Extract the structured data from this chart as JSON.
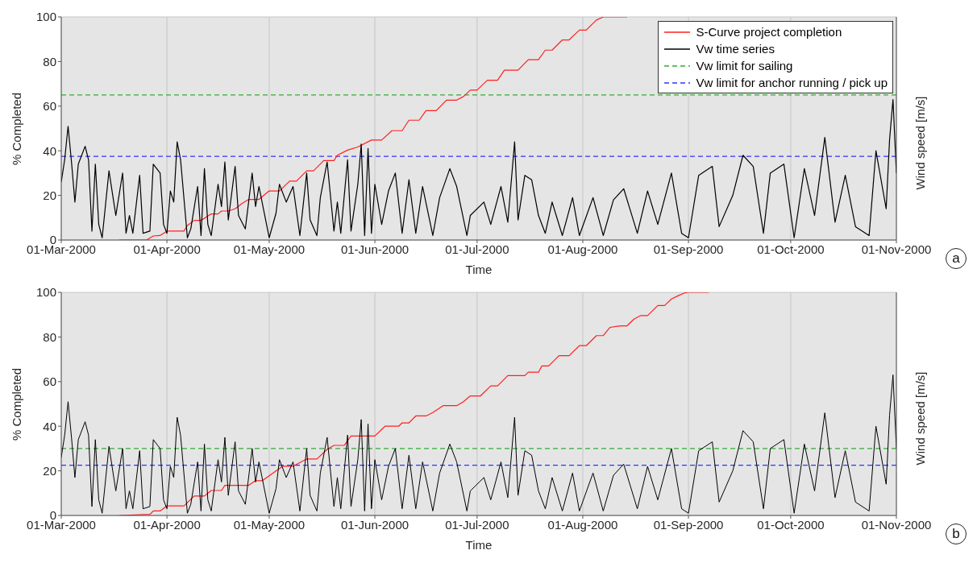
{
  "chart_data": [
    {
      "type": "line",
      "xlabel": "Time",
      "ylabel": "% Completed",
      "y2label": "Wind speed [m/s]",
      "xlim": [
        "2000-03-01",
        "2000-11-01"
      ],
      "xticks": [
        {
          "value": "2000-03-01",
          "label": "01-Mar-2000"
        },
        {
          "value": "2000-04-01",
          "label": "01-Apr-2000"
        },
        {
          "value": "2000-05-01",
          "label": "01-May-2000"
        },
        {
          "value": "2000-06-01",
          "label": "01-Jun-2000"
        },
        {
          "value": "2000-07-01",
          "label": "01-Jul-2000"
        },
        {
          "value": "2000-08-01",
          "label": "01-Aug-2000"
        },
        {
          "value": "2000-09-01",
          "label": "01-Sep-2000"
        },
        {
          "value": "2000-10-01",
          "label": "01-Oct-2000"
        },
        {
          "value": "2000-11-01",
          "label": "01-Nov-2000"
        }
      ],
      "ylim": [
        0,
        100
      ],
      "yticks": [
        0,
        20,
        40,
        60,
        80,
        100
      ],
      "grid": true,
      "legend": "top right",
      "series": [
        {
          "name": "S-Curve project completion",
          "color": "#ff2020",
          "x": [
            "2000-03-18",
            "2000-03-21",
            "2000-03-26",
            "2000-03-28",
            "2000-03-30",
            "2000-04-01",
            "2000-04-06",
            "2000-04-07",
            "2000-04-09",
            "2000-04-11",
            "2000-04-14",
            "2000-04-16",
            "2000-04-17",
            "2000-04-19",
            "2000-04-21",
            "2000-04-23",
            "2000-04-25",
            "2000-04-28",
            "2000-05-01",
            "2000-05-04",
            "2000-05-07",
            "2000-05-09",
            "2000-05-12",
            "2000-05-14",
            "2000-05-17",
            "2000-05-20",
            "2000-05-21",
            "2000-05-24",
            "2000-05-27",
            "2000-05-31",
            "2000-06-03",
            "2000-06-06",
            "2000-06-09",
            "2000-06-11",
            "2000-06-14",
            "2000-06-16",
            "2000-06-19",
            "2000-06-22",
            "2000-06-25",
            "2000-06-27",
            "2000-06-29",
            "2000-07-01",
            "2000-07-04",
            "2000-07-07",
            "2000-07-09",
            "2000-07-13",
            "2000-07-16",
            "2000-07-19",
            "2000-07-21",
            "2000-07-23",
            "2000-07-26",
            "2000-07-28",
            "2000-07-31",
            "2000-08-02",
            "2000-08-05",
            "2000-08-07",
            "2000-08-14"
          ],
          "values": [
            0,
            0,
            0,
            1.8,
            2,
            4,
            4,
            6.5,
            8.8,
            8.8,
            11.7,
            11.7,
            13,
            13,
            14,
            16.3,
            18.2,
            18.2,
            22,
            22,
            26.4,
            26.4,
            31,
            31,
            35.6,
            35.6,
            38,
            40.3,
            41.7,
            44.8,
            44.8,
            49,
            49,
            53.7,
            53.7,
            58,
            58,
            62.7,
            62.7,
            64.3,
            67.2,
            67.2,
            71.6,
            71.6,
            76.1,
            76.1,
            80.8,
            80.8,
            85.1,
            85.1,
            89.7,
            89.7,
            94.1,
            94.1,
            98.6,
            100,
            100
          ]
        },
        {
          "name": "Vw time series",
          "color": "#000000",
          "x": [
            "2000-03-01",
            "2000-03-02",
            "2000-03-03",
            "2000-03-04",
            "2000-03-05",
            "2000-03-06",
            "2000-03-08",
            "2000-03-09",
            "2000-03-10",
            "2000-03-11",
            "2000-03-12",
            "2000-03-13",
            "2000-03-15",
            "2000-03-17",
            "2000-03-19",
            "2000-03-20",
            "2000-03-21",
            "2000-03-22",
            "2000-03-24",
            "2000-03-25",
            "2000-03-27",
            "2000-03-28",
            "2000-03-30",
            "2000-03-31",
            "2000-04-01",
            "2000-04-02",
            "2000-04-03",
            "2000-04-04",
            "2000-04-05",
            "2000-04-07",
            "2000-04-08",
            "2000-04-10",
            "2000-04-11",
            "2000-04-12",
            "2000-04-13",
            "2000-04-14",
            "2000-04-16",
            "2000-04-17",
            "2000-04-18",
            "2000-04-19",
            "2000-04-21",
            "2000-04-22",
            "2000-04-24",
            "2000-04-26",
            "2000-04-27",
            "2000-04-28",
            "2000-05-01",
            "2000-05-03",
            "2000-05-04",
            "2000-05-06",
            "2000-05-08",
            "2000-05-10",
            "2000-05-12",
            "2000-05-13",
            "2000-05-15",
            "2000-05-16",
            "2000-05-18",
            "2000-05-20",
            "2000-05-21",
            "2000-05-22",
            "2000-05-24",
            "2000-05-25",
            "2000-05-27",
            "2000-05-28",
            "2000-05-29",
            "2000-05-30",
            "2000-05-31",
            "2000-06-01",
            "2000-06-03",
            "2000-06-05",
            "2000-06-07",
            "2000-06-09",
            "2000-06-11",
            "2000-06-13",
            "2000-06-15",
            "2000-06-18",
            "2000-06-20",
            "2000-06-23",
            "2000-06-25",
            "2000-06-28",
            "2000-06-29",
            "2000-07-03",
            "2000-07-05",
            "2000-07-08",
            "2000-07-10",
            "2000-07-12",
            "2000-07-13",
            "2000-07-15",
            "2000-07-17",
            "2000-07-19",
            "2000-07-21",
            "2000-07-23",
            "2000-07-26",
            "2000-07-29",
            "2000-07-31",
            "2000-08-04",
            "2000-08-07",
            "2000-08-10",
            "2000-08-13",
            "2000-08-17",
            "2000-08-20",
            "2000-08-23",
            "2000-08-27",
            "2000-08-30",
            "2000-09-01",
            "2000-09-04",
            "2000-09-08",
            "2000-09-10",
            "2000-09-14",
            "2000-09-17",
            "2000-09-20",
            "2000-09-23",
            "2000-09-25",
            "2000-09-29",
            "2000-10-02",
            "2000-10-05",
            "2000-10-08",
            "2000-10-11",
            "2000-10-14",
            "2000-10-17",
            "2000-10-20",
            "2000-10-24",
            "2000-10-26",
            "2000-10-29",
            "2000-10-30",
            "2000-10-31",
            "2000-11-01"
          ],
          "values": [
            26,
            36,
            51,
            35,
            17,
            34,
            42,
            36,
            4,
            34,
            7,
            1,
            31,
            11,
            30,
            3,
            11,
            3,
            29,
            3,
            4,
            34,
            30,
            7,
            3,
            22,
            17,
            44,
            36,
            1,
            5,
            24,
            2,
            32,
            7,
            2,
            25,
            15,
            35,
            9,
            33,
            11,
            5,
            30,
            15,
            24,
            1,
            12,
            25,
            17,
            24,
            2,
            30,
            9,
            2,
            19,
            35,
            4,
            17,
            3,
            36,
            4,
            25,
            43,
            2,
            41,
            3,
            25,
            7,
            22,
            30,
            3,
            27,
            3,
            24,
            2,
            19,
            32,
            24,
            2,
            11,
            17,
            7,
            24,
            8,
            44,
            9,
            29,
            27,
            11,
            3,
            17,
            2,
            19,
            2,
            19,
            2,
            18,
            23,
            3,
            22,
            7,
            30,
            3,
            1,
            29,
            33,
            6,
            20,
            38,
            33,
            3,
            30,
            34,
            1,
            32,
            11,
            46,
            8,
            29,
            6,
            2,
            40,
            14,
            45,
            63,
            30
          ]
        }
      ],
      "ref_lines": [
        {
          "axis": "y",
          "value": 65,
          "label": "Vw limit for sailing",
          "color": "#33aa33",
          "line_style": "dashed"
        },
        {
          "axis": "y",
          "value": 37.5,
          "label": "Vw limit for anchor running / pick up",
          "color": "#3333ff",
          "line_style": "dashed"
        }
      ],
      "annotations": [
        "a"
      ]
    },
    {
      "type": "line",
      "xlabel": "Time",
      "ylabel": "% Completed",
      "y2label": "Wind speed [m/s]",
      "xlim": [
        "2000-03-01",
        "2000-11-01"
      ],
      "xticks": [
        {
          "value": "2000-03-01",
          "label": "01-Mar-2000"
        },
        {
          "value": "2000-04-01",
          "label": "01-Apr-2000"
        },
        {
          "value": "2000-05-01",
          "label": "01-May-2000"
        },
        {
          "value": "2000-06-01",
          "label": "01-Jun-2000"
        },
        {
          "value": "2000-07-01",
          "label": "01-Jul-2000"
        },
        {
          "value": "2000-08-01",
          "label": "01-Aug-2000"
        },
        {
          "value": "2000-09-01",
          "label": "01-Sep-2000"
        },
        {
          "value": "2000-10-01",
          "label": "01-Oct-2000"
        },
        {
          "value": "2000-11-01",
          "label": "01-Nov-2000"
        }
      ],
      "ylim": [
        0,
        100
      ],
      "yticks": [
        0,
        20,
        40,
        60,
        80,
        100
      ],
      "grid": true,
      "series": [
        {
          "color": "#ff2020",
          "x": [
            "2000-03-18",
            "2000-03-27",
            "2000-03-28",
            "2000-03-30",
            "2000-04-01",
            "2000-04-06",
            "2000-04-09",
            "2000-04-12",
            "2000-04-14",
            "2000-04-17",
            "2000-04-18",
            "2000-04-25",
            "2000-04-27",
            "2000-04-29",
            "2000-05-01",
            "2000-05-05",
            "2000-05-08",
            "2000-05-12",
            "2000-05-15",
            "2000-05-18",
            "2000-05-20",
            "2000-05-23",
            "2000-05-25",
            "2000-06-01",
            "2000-06-04",
            "2000-06-08",
            "2000-06-09",
            "2000-06-11",
            "2000-06-13",
            "2000-06-16",
            "2000-06-18",
            "2000-06-21",
            "2000-06-25",
            "2000-06-27",
            "2000-06-29",
            "2000-07-02",
            "2000-07-05",
            "2000-07-07",
            "2000-07-10",
            "2000-07-15",
            "2000-07-16",
            "2000-07-19",
            "2000-07-20",
            "2000-07-22",
            "2000-07-25",
            "2000-07-28",
            "2000-07-31",
            "2000-08-02",
            "2000-08-05",
            "2000-08-07",
            "2000-08-09",
            "2000-08-12",
            "2000-08-14",
            "2000-08-16",
            "2000-08-18",
            "2000-08-20",
            "2000-08-23",
            "2000-08-25",
            "2000-08-27",
            "2000-08-29",
            "2000-08-31",
            "2000-09-01",
            "2000-09-07"
          ],
          "values": [
            0,
            0.5,
            2,
            2,
            4.3,
            4.3,
            8.7,
            8.7,
            11.2,
            11.2,
            13.5,
            13.5,
            15.6,
            15.6,
            17.8,
            22.1,
            22.1,
            25.3,
            25.3,
            29.6,
            31.4,
            31.4,
            35.6,
            35.6,
            40,
            40,
            41.5,
            41.5,
            44.6,
            44.6,
            46.1,
            49.2,
            49.2,
            51,
            53.6,
            53.6,
            58.1,
            58.1,
            62.7,
            62.7,
            64.2,
            64.2,
            67,
            67,
            71.6,
            71.6,
            76.1,
            76.1,
            80.6,
            80.6,
            84.3,
            85,
            85,
            88,
            89.6,
            89.6,
            94.1,
            94.1,
            97,
            98.5,
            99.8,
            100,
            100
          ]
        },
        {
          "color": "#000000",
          "x": [
            "2000-03-01",
            "2000-03-02",
            "2000-03-03",
            "2000-03-04",
            "2000-03-05",
            "2000-03-06",
            "2000-03-08",
            "2000-03-09",
            "2000-03-10",
            "2000-03-11",
            "2000-03-12",
            "2000-03-13",
            "2000-03-15",
            "2000-03-17",
            "2000-03-19",
            "2000-03-20",
            "2000-03-21",
            "2000-03-22",
            "2000-03-24",
            "2000-03-25",
            "2000-03-27",
            "2000-03-28",
            "2000-03-30",
            "2000-03-31",
            "2000-04-01",
            "2000-04-02",
            "2000-04-03",
            "2000-04-04",
            "2000-04-05",
            "2000-04-07",
            "2000-04-08",
            "2000-04-10",
            "2000-04-11",
            "2000-04-12",
            "2000-04-13",
            "2000-04-14",
            "2000-04-16",
            "2000-04-17",
            "2000-04-18",
            "2000-04-19",
            "2000-04-21",
            "2000-04-22",
            "2000-04-24",
            "2000-04-26",
            "2000-04-27",
            "2000-04-28",
            "2000-05-01",
            "2000-05-03",
            "2000-05-04",
            "2000-05-06",
            "2000-05-08",
            "2000-05-10",
            "2000-05-12",
            "2000-05-13",
            "2000-05-15",
            "2000-05-16",
            "2000-05-18",
            "2000-05-20",
            "2000-05-21",
            "2000-05-22",
            "2000-05-24",
            "2000-05-25",
            "2000-05-27",
            "2000-05-28",
            "2000-05-29",
            "2000-05-30",
            "2000-05-31",
            "2000-06-01",
            "2000-06-03",
            "2000-06-05",
            "2000-06-07",
            "2000-06-09",
            "2000-06-11",
            "2000-06-13",
            "2000-06-15",
            "2000-06-18",
            "2000-06-20",
            "2000-06-23",
            "2000-06-25",
            "2000-06-28",
            "2000-06-29",
            "2000-07-03",
            "2000-07-05",
            "2000-07-08",
            "2000-07-10",
            "2000-07-12",
            "2000-07-13",
            "2000-07-15",
            "2000-07-17",
            "2000-07-19",
            "2000-07-21",
            "2000-07-23",
            "2000-07-26",
            "2000-07-29",
            "2000-07-31",
            "2000-08-04",
            "2000-08-07",
            "2000-08-10",
            "2000-08-13",
            "2000-08-17",
            "2000-08-20",
            "2000-08-23",
            "2000-08-27",
            "2000-08-30",
            "2000-09-01",
            "2000-09-04",
            "2000-09-08",
            "2000-09-10",
            "2000-09-14",
            "2000-09-17",
            "2000-09-20",
            "2000-09-23",
            "2000-09-25",
            "2000-09-29",
            "2000-10-02",
            "2000-10-05",
            "2000-10-08",
            "2000-10-11",
            "2000-10-14",
            "2000-10-17",
            "2000-10-20",
            "2000-10-24",
            "2000-10-26",
            "2000-10-29",
            "2000-10-30",
            "2000-10-31",
            "2000-11-01"
          ],
          "values": [
            26,
            36,
            51,
            35,
            17,
            34,
            42,
            36,
            4,
            34,
            7,
            1,
            31,
            11,
            30,
            3,
            11,
            3,
            29,
            3,
            4,
            34,
            30,
            7,
            3,
            22,
            17,
            44,
            36,
            1,
            5,
            24,
            2,
            32,
            7,
            2,
            25,
            15,
            35,
            9,
            33,
            11,
            5,
            30,
            15,
            24,
            1,
            12,
            25,
            17,
            24,
            2,
            30,
            9,
            2,
            19,
            35,
            4,
            17,
            3,
            36,
            4,
            25,
            43,
            2,
            41,
            3,
            25,
            7,
            22,
            30,
            3,
            27,
            3,
            24,
            2,
            19,
            32,
            24,
            2,
            11,
            17,
            7,
            24,
            8,
            44,
            9,
            29,
            27,
            11,
            3,
            17,
            2,
            19,
            2,
            19,
            2,
            18,
            23,
            3,
            22,
            7,
            30,
            3,
            1,
            29,
            33,
            6,
            20,
            38,
            33,
            3,
            30,
            34,
            1,
            32,
            11,
            46,
            8,
            29,
            6,
            2,
            40,
            14,
            45,
            63,
            30
          ]
        }
      ],
      "ref_lines": [
        {
          "axis": "y",
          "value": 30,
          "color": "#33aa33",
          "line_style": "dashed"
        },
        {
          "axis": "y",
          "value": 22.5,
          "color": "#3333ff",
          "line_style": "dashed"
        }
      ],
      "annotations": [
        "b"
      ]
    }
  ]
}
